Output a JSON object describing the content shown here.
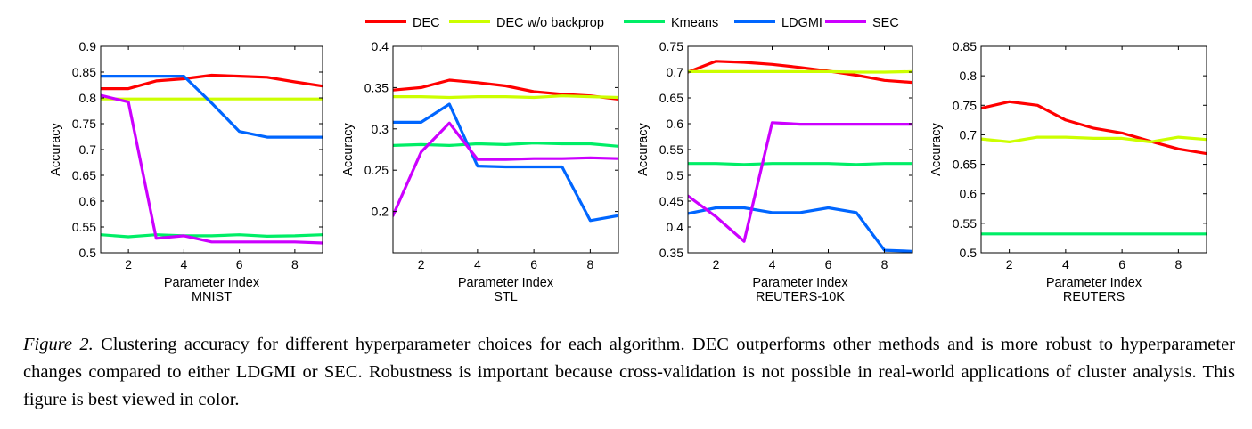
{
  "legend": [
    {
      "name": "DEC",
      "color": "#ff0000"
    },
    {
      "name": "DEC w/o backprop",
      "color": "#ccff00"
    },
    {
      "name": "Kmeans",
      "color": "#00ee66"
    },
    {
      "name": "LDGMI",
      "color": "#0066ff"
    },
    {
      "name": "SEC",
      "color": "#cc00ff"
    }
  ],
  "chart_data": [
    {
      "type": "line",
      "dataset": "MNIST",
      "xlabel": "Parameter Index",
      "ylabel": "Accuracy",
      "xlim": [
        1,
        9
      ],
      "ylim": [
        0.5,
        0.9
      ],
      "xticks": [
        2,
        4,
        6,
        8
      ],
      "yticks": [
        0.5,
        0.55,
        0.6,
        0.65,
        0.7,
        0.75,
        0.8,
        0.85,
        0.9
      ],
      "x": [
        1,
        2,
        3,
        4,
        5,
        6,
        7,
        8,
        9
      ],
      "series": [
        {
          "name": "DEC",
          "values": [
            0.818,
            0.818,
            0.833,
            0.837,
            0.844,
            0.842,
            0.84,
            0.831,
            0.823
          ]
        },
        {
          "name": "DEC w/o backprop",
          "values": [
            0.798,
            0.798,
            0.798,
            0.798,
            0.798,
            0.798,
            0.798,
            0.798,
            0.798
          ]
        },
        {
          "name": "Kmeans",
          "values": [
            0.535,
            0.531,
            0.535,
            0.533,
            0.533,
            0.535,
            0.532,
            0.533,
            0.535
          ]
        },
        {
          "name": "LDGMI",
          "values": [
            0.842,
            0.842,
            0.842,
            0.842,
            0.79,
            0.735,
            0.724,
            0.724,
            0.724
          ]
        },
        {
          "name": "SEC",
          "values": [
            0.805,
            0.792,
            0.528,
            0.533,
            0.521,
            0.521,
            0.521,
            0.521,
            0.519
          ]
        }
      ]
    },
    {
      "type": "line",
      "dataset": "STL",
      "xlabel": "Parameter Index",
      "ylabel": "Accuracy",
      "xlim": [
        1,
        9
      ],
      "ylim": [
        0.15,
        0.4
      ],
      "xticks": [
        2,
        4,
        6,
        8
      ],
      "yticks": [
        0.2,
        0.25,
        0.3,
        0.35,
        0.4
      ],
      "x": [
        1,
        2,
        3,
        4,
        5,
        6,
        7,
        8,
        9
      ],
      "series": [
        {
          "name": "DEC",
          "values": [
            0.347,
            0.35,
            0.359,
            0.356,
            0.352,
            0.345,
            0.342,
            0.34,
            0.336
          ]
        },
        {
          "name": "DEC w/o backprop",
          "values": [
            0.339,
            0.339,
            0.338,
            0.339,
            0.339,
            0.338,
            0.34,
            0.339,
            0.338
          ]
        },
        {
          "name": "Kmeans",
          "values": [
            0.28,
            0.281,
            0.28,
            0.282,
            0.281,
            0.283,
            0.282,
            0.282,
            0.279
          ]
        },
        {
          "name": "LDGMI",
          "values": [
            0.308,
            0.308,
            0.33,
            0.255,
            0.254,
            0.254,
            0.254,
            0.189,
            0.195
          ]
        },
        {
          "name": "SEC",
          "values": [
            0.195,
            0.272,
            0.307,
            0.263,
            0.263,
            0.264,
            0.264,
            0.265,
            0.264
          ]
        }
      ]
    },
    {
      "type": "line",
      "dataset": "REUTERS-10K",
      "xlabel": "Parameter Index",
      "ylabel": "Accuracy",
      "xlim": [
        1,
        9
      ],
      "ylim": [
        0.35,
        0.75
      ],
      "xticks": [
        2,
        4,
        6,
        8
      ],
      "yticks": [
        0.35,
        0.4,
        0.45,
        0.5,
        0.55,
        0.6,
        0.65,
        0.7,
        0.75
      ],
      "x": [
        1,
        2,
        3,
        4,
        5,
        6,
        7,
        8,
        9
      ],
      "series": [
        {
          "name": "DEC",
          "values": [
            0.7,
            0.721,
            0.719,
            0.715,
            0.709,
            0.702,
            0.694,
            0.684,
            0.68
          ]
        },
        {
          "name": "DEC w/o backprop",
          "values": [
            0.701,
            0.701,
            0.701,
            0.701,
            0.701,
            0.701,
            0.7,
            0.7,
            0.701
          ]
        },
        {
          "name": "Kmeans",
          "values": [
            0.523,
            0.523,
            0.521,
            0.523,
            0.523,
            0.523,
            0.521,
            0.523,
            0.523
          ]
        },
        {
          "name": "LDGMI",
          "values": [
            0.426,
            0.437,
            0.437,
            0.428,
            0.428,
            0.437,
            0.428,
            0.355,
            0.353
          ]
        },
        {
          "name": "SEC",
          "values": [
            0.46,
            0.42,
            0.372,
            0.602,
            0.599,
            0.599,
            0.599,
            0.599,
            0.599
          ]
        }
      ]
    },
    {
      "type": "line",
      "dataset": "REUTERS",
      "xlabel": "Parameter Index",
      "ylabel": "Accuracy",
      "xlim": [
        1,
        9
      ],
      "ylim": [
        0.5,
        0.85
      ],
      "xticks": [
        2,
        4,
        6,
        8
      ],
      "yticks": [
        0.5,
        0.55,
        0.6,
        0.65,
        0.7,
        0.75,
        0.8,
        0.85
      ],
      "x": [
        1,
        2,
        3,
        4,
        5,
        6,
        7,
        8,
        9
      ],
      "series": [
        {
          "name": "DEC",
          "values": [
            0.745,
            0.756,
            0.75,
            0.725,
            0.711,
            0.703,
            0.689,
            0.676,
            0.668
          ]
        },
        {
          "name": "DEC w/o backprop",
          "values": [
            0.693,
            0.688,
            0.696,
            0.696,
            0.694,
            0.694,
            0.688,
            0.696,
            0.692
          ]
        },
        {
          "name": "Kmeans",
          "values": [
            0.532,
            0.532,
            0.532,
            0.532,
            0.532,
            0.532,
            0.532,
            0.532,
            0.532
          ]
        }
      ]
    }
  ],
  "caption": {
    "label": "Figure 2.",
    "text": " Clustering accuracy for different hyperparameter choices for each algorithm. DEC outperforms other methods and is more robust to hyperparameter changes compared to either LDGMI or SEC. Robustness is important because cross-validation is not possible in real-world applications of cluster analysis. This figure is best viewed in color."
  }
}
